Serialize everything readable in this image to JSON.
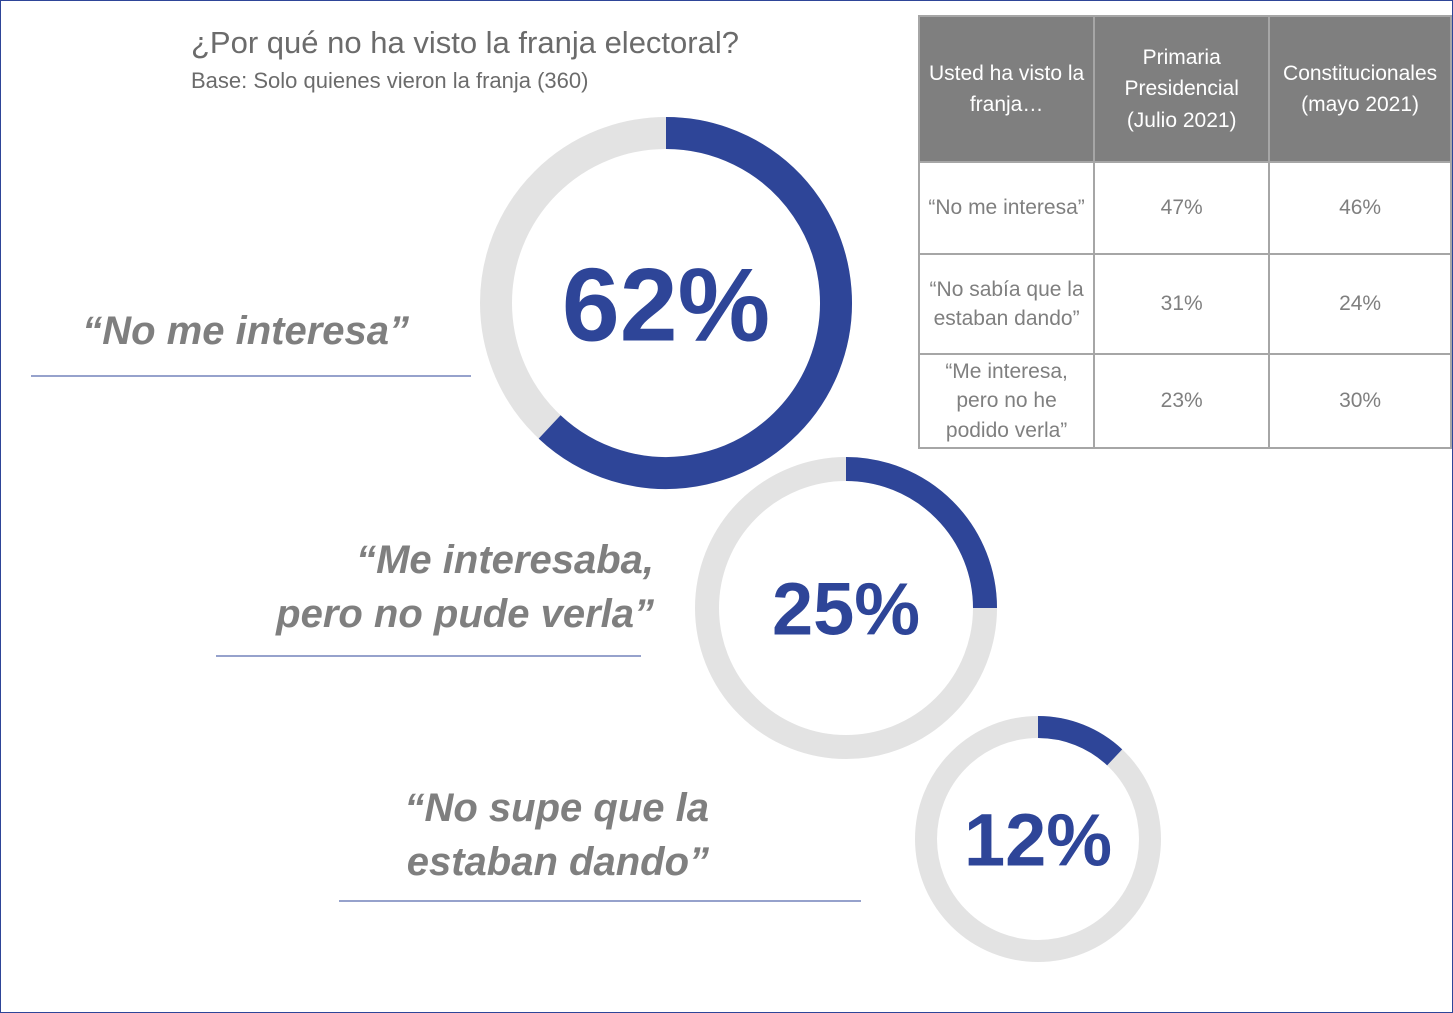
{
  "chart_data": {
    "type": "donut",
    "title": "¿Por qué no ha visto la franja electoral?",
    "subtitle": "Base: Solo quienes vieron la franja (360)",
    "categories": [
      "“No me interesa”",
      "“Me interesaba,\npero no pude verla”",
      "“No supe que la\nestaban dando”"
    ],
    "values": [
      62,
      25,
      12
    ],
    "value_labels": [
      "62%",
      "25%",
      "12%"
    ],
    "color": "#2e4598",
    "track_color": "#e3e3e3"
  },
  "table": {
    "header": [
      "Usted ha visto la franja…",
      "Primaria Presidencial (Julio 2021)",
      "Constitucionales (mayo 2021)"
    ],
    "rows": [
      [
        "“No me interesa”",
        "47%",
        "46%"
      ],
      [
        "“No sabía que la estaban dando”",
        "31%",
        "24%"
      ],
      [
        "“Me interesa, pero no he podido verla”",
        "23%",
        "30%"
      ]
    ]
  }
}
